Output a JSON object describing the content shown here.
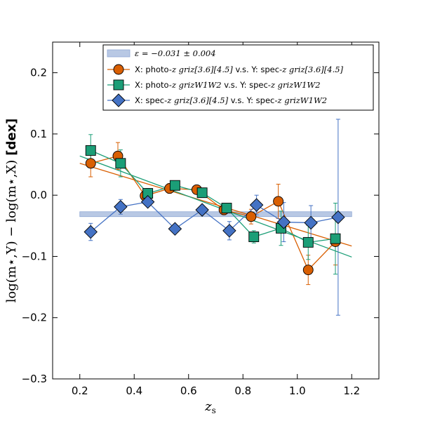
{
  "chart_data": {
    "type": "scatter",
    "title": "",
    "xlabel": "z_s",
    "ylabel_left": "log(m⋆,Y) − log(m⋆,X)",
    "ylabel_right": "[dex]",
    "xlim": [
      0.1,
      1.3
    ],
    "ylim": [
      -0.3,
      0.25
    ],
    "x_ticks": [
      0.2,
      0.4,
      0.6,
      0.8,
      1.0,
      1.2
    ],
    "x_tick_labels": [
      "0.2",
      "0.4",
      "0.6",
      "0.8",
      "1.0",
      "1.2"
    ],
    "y_ticks": [
      -0.3,
      -0.2,
      -0.1,
      0.0,
      0.1,
      0.2
    ],
    "y_tick_labels": [
      "−0.3",
      "−0.2",
      "−0.1",
      "0.0",
      "0.1",
      "0.2"
    ],
    "legend_position": "upper-center",
    "band": {
      "label_prefix": "ε = ",
      "label_value": "−0.031 ± 0.004",
      "x_range": [
        0.2,
        1.2
      ],
      "center": -0.031,
      "halfwidth": 0.004,
      "color": "#b8c8e4"
    },
    "series": [
      {
        "name": "photo-griz36-vs-spec-griz36",
        "legend_x": "X: photo-",
        "legend_x_math": "z griz[3.6][4.5]",
        "legend_mid": " v.s. Y: spec-",
        "legend_y_math": "z griz[3.6][4.5]",
        "marker": "circle",
        "color": "#d95f02",
        "x": [
          0.24,
          0.34,
          0.44,
          0.53,
          0.63,
          0.73,
          0.83,
          0.93,
          1.04,
          1.14
        ],
        "y": [
          0.052,
          0.064,
          -0.001,
          0.011,
          0.009,
          -0.024,
          -0.035,
          -0.01,
          -0.122,
          -0.076
        ],
        "err": [
          0.022,
          0.022,
          0.01,
          0.008,
          0.006,
          0.008,
          0.012,
          0.028,
          0.024,
          0.038
        ],
        "fit": [
          [
            0.2,
            0.052
          ],
          [
            1.2,
            -0.083
          ]
        ]
      },
      {
        "name": "photo-grizW1W2-vs-spec-grizW1W2",
        "legend_x": "X: photo-",
        "legend_x_math": "z grizW1W2",
        "legend_mid": " v.s. Y: spec-",
        "legend_y_math": "z grizW1W2",
        "marker": "square",
        "color": "#1b9e77",
        "x": [
          0.24,
          0.35,
          0.45,
          0.55,
          0.65,
          0.74,
          0.84,
          0.94,
          1.04,
          1.14
        ],
        "y": [
          0.073,
          0.052,
          0.003,
          0.016,
          0.004,
          -0.021,
          -0.068,
          -0.054,
          -0.077,
          -0.071
        ],
        "err": [
          0.026,
          0.022,
          0.008,
          0.006,
          0.006,
          0.006,
          0.01,
          0.028,
          0.028,
          0.058
        ],
        "fit": [
          [
            0.2,
            0.064
          ],
          [
            1.2,
            -0.101
          ]
        ]
      },
      {
        "name": "spec-griz36-vs-spec-grizW1W2",
        "legend_x": "X: spec-",
        "legend_x_math": "z griz[3.6][4.5]",
        "legend_mid": " v.s. Y: spec-",
        "legend_y_math": "z grizW1W2",
        "marker": "diamond",
        "color": "#4472c4",
        "x": [
          0.24,
          0.35,
          0.45,
          0.55,
          0.65,
          0.75,
          0.85,
          0.95,
          1.05,
          1.15
        ],
        "y": [
          -0.06,
          -0.019,
          -0.011,
          -0.055,
          -0.024,
          -0.058,
          -0.016,
          -0.044,
          -0.045,
          -0.036
        ],
        "err": [
          0.014,
          0.012,
          0.006,
          0.005,
          0.005,
          0.015,
          0.016,
          0.032,
          0.028,
          0.16
        ],
        "fit": null
      }
    ]
  }
}
